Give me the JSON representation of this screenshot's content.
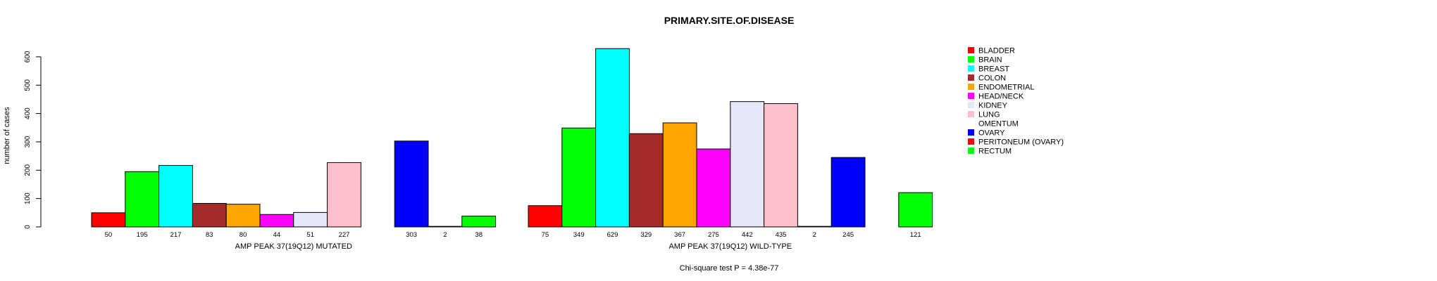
{
  "chart_data": {
    "type": "bar",
    "title": "PRIMARY.SITE.OF.DISEASE",
    "ylabel": "number of cases",
    "ylim": [
      0,
      630
    ],
    "yticks": [
      0,
      100,
      200,
      300,
      400,
      500,
      600
    ],
    "footer": "Chi-square test P = 4.38e-77",
    "categories": [
      "BLADDER",
      "BRAIN",
      "BREAST",
      "COLON",
      "ENDOMETRIAL",
      "HEAD/NECK",
      "KIDNEY",
      "LUNG",
      "OMENTUM",
      "OVARY",
      "PERITONEUM (OVARY)",
      "RECTUM"
    ],
    "colors": [
      "#ff0000",
      "#00ff00",
      "#00ffff",
      "#a52a2a",
      "#ffa500",
      "#ff00ff",
      "#e6e6fa",
      "#ffc0cb",
      "#ffffff",
      "#0000ff",
      "#ff0000",
      "#00ff00"
    ],
    "groups": [
      {
        "name": "AMP PEAK 37(19Q12) MUTATED",
        "values": [
          50,
          195,
          217,
          83,
          80,
          44,
          51,
          227,
          0,
          303,
          2,
          38
        ],
        "labels": [
          "50",
          "195",
          "217",
          "83",
          "80",
          "44",
          "51",
          "227",
          "",
          "303",
          "2",
          "38"
        ]
      },
      {
        "name": "AMP PEAK 37(19Q12) WILD-TYPE",
        "values": [
          75,
          349,
          629,
          329,
          367,
          275,
          442,
          435,
          2,
          245,
          0,
          121
        ],
        "labels": [
          "75",
          "349",
          "629",
          "329",
          "367",
          "275",
          "442",
          "435",
          "2",
          "245",
          "",
          "121"
        ]
      }
    ],
    "legend": [
      "BLADDER",
      "BRAIN",
      "BREAST",
      "COLON",
      "ENDOMETRIAL",
      "HEAD/NECK",
      "KIDNEY",
      "LUNG",
      "OMENTUM",
      "OVARY",
      "PERITONEUM (OVARY)",
      "RECTUM"
    ],
    "legend_position": "right"
  }
}
